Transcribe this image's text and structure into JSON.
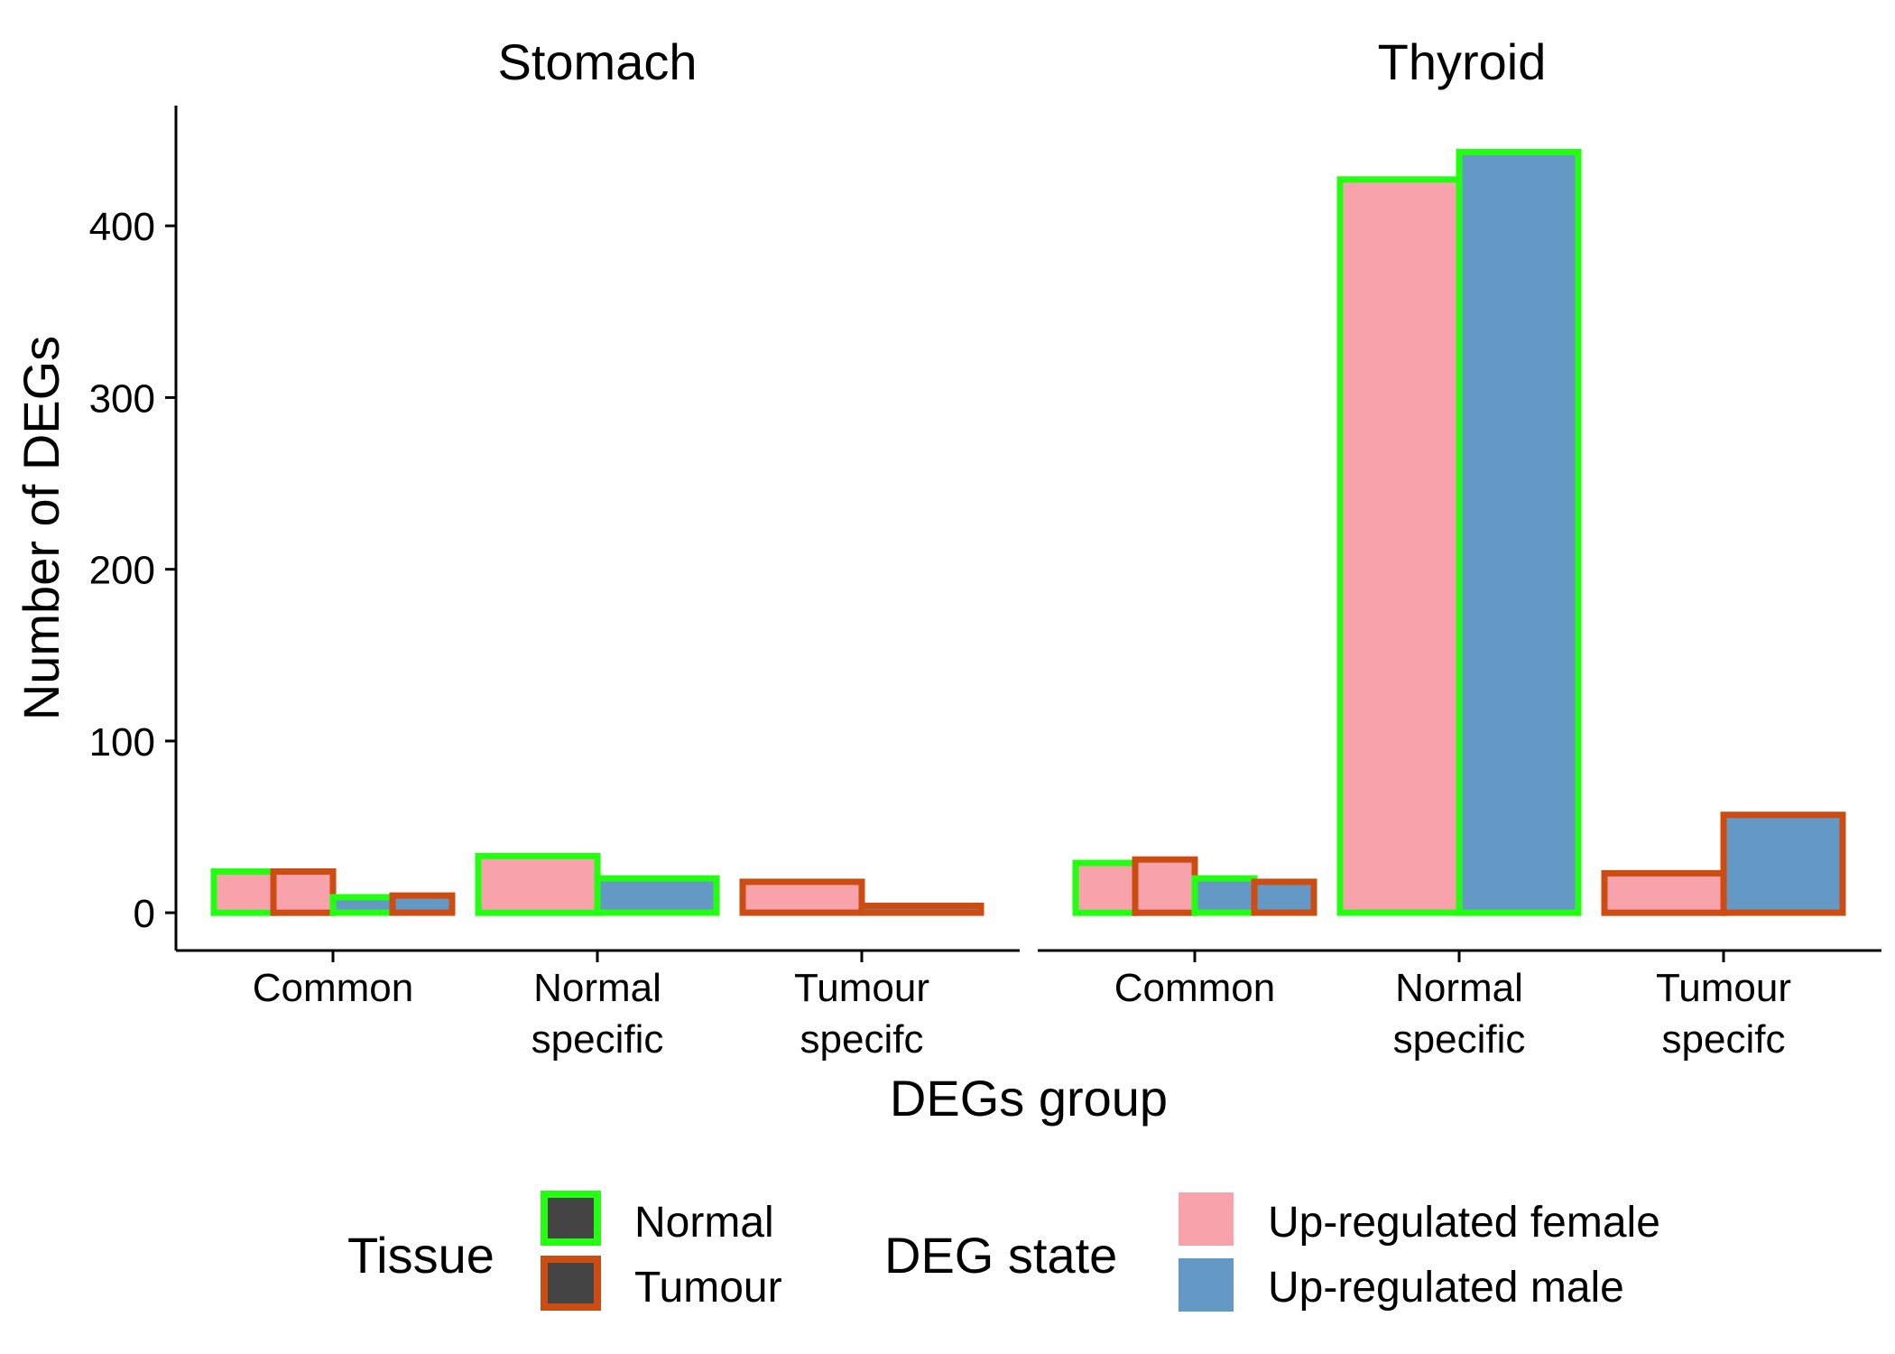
{
  "chart_data": {
    "type": "bar",
    "xlabel": "DEGs group",
    "ylabel": "Number of DEGs",
    "ylim": [
      -22,
      470
    ],
    "yticks": [
      0,
      100,
      200,
      300,
      400
    ],
    "grid": false,
    "legend_position": "bottom",
    "categories": [
      {
        "lines": [
          "Common"
        ]
      },
      {
        "lines": [
          "Normal",
          "specific"
        ]
      },
      {
        "lines": [
          "Tumour",
          "specifc"
        ]
      }
    ],
    "panels": [
      {
        "title": "Stomach",
        "bars": [
          {
            "category": 0,
            "tissue": "Normal",
            "state": "female",
            "value": 24
          },
          {
            "category": 0,
            "tissue": "Tumour",
            "state": "female",
            "value": 24
          },
          {
            "category": 0,
            "tissue": "Normal",
            "state": "male",
            "value": 9
          },
          {
            "category": 0,
            "tissue": "Tumour",
            "state": "male",
            "value": 10
          },
          {
            "category": 1,
            "tissue": "Normal",
            "state": "female",
            "value": 33
          },
          {
            "category": 1,
            "tissue": "Normal",
            "state": "male",
            "value": 20
          },
          {
            "category": 2,
            "tissue": "Tumour",
            "state": "female",
            "value": 18
          },
          {
            "category": 2,
            "tissue": "Tumour",
            "state": "male",
            "value": 4
          }
        ]
      },
      {
        "title": "Thyroid",
        "bars": [
          {
            "category": 0,
            "tissue": "Normal",
            "state": "female",
            "value": 29
          },
          {
            "category": 0,
            "tissue": "Tumour",
            "state": "female",
            "value": 31
          },
          {
            "category": 0,
            "tissue": "Normal",
            "state": "male",
            "value": 20
          },
          {
            "category": 0,
            "tissue": "Tumour",
            "state": "male",
            "value": 18
          },
          {
            "category": 1,
            "tissue": "Normal",
            "state": "female",
            "value": 427
          },
          {
            "category": 1,
            "tissue": "Normal",
            "state": "male",
            "value": 443
          },
          {
            "category": 2,
            "tissue": "Tumour",
            "state": "female",
            "value": 23
          },
          {
            "category": 2,
            "tissue": "Tumour",
            "state": "male",
            "value": 57
          }
        ]
      }
    ],
    "legend": {
      "tissue": {
        "title": "Tissue",
        "items": [
          {
            "label": "Normal",
            "border_color": "#22FF11"
          },
          {
            "label": "Tumour",
            "border_color": "#CC4C11"
          }
        ],
        "key_fill": "#444444"
      },
      "state": {
        "title": "DEG state",
        "items": [
          {
            "label": "Up-regulated female",
            "fill_color": "#F8A3AB"
          },
          {
            "label": "Up-regulated male",
            "fill_color": "#6399C4"
          }
        ]
      }
    },
    "colors": {
      "female": "#F8A3AB",
      "male": "#6399C4",
      "Normal": "#22FF11",
      "Tumour": "#CC4C11"
    }
  }
}
